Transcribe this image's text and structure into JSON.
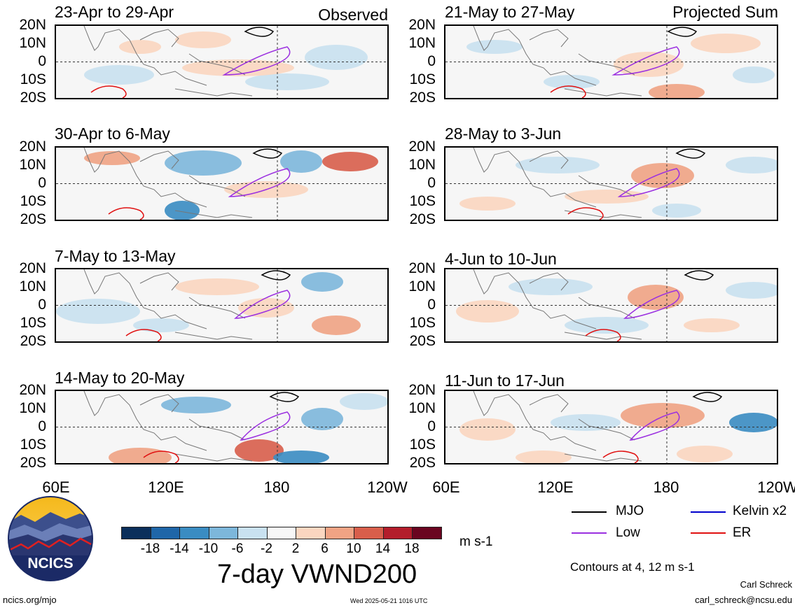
{
  "header": {
    "left_tag": "Observed",
    "right_tag": "Projected Sum"
  },
  "panels_left": [
    {
      "title": "23-Apr to 29-Apr"
    },
    {
      "title": "30-Apr to 6-May"
    },
    {
      "title": "7-May to 13-May"
    },
    {
      "title": "14-May to 20-May"
    }
  ],
  "panels_right": [
    {
      "title": "21-May to 27-May"
    },
    {
      "title": "28-May to 3-Jun"
    },
    {
      "title": "4-Jun to 10-Jun"
    },
    {
      "title": "11-Jun to 17-Jun"
    }
  ],
  "lat_labels": [
    "20N",
    "10N",
    "0",
    "10S",
    "20S"
  ],
  "lon_labels": [
    "60E",
    "120E",
    "180",
    "120W"
  ],
  "colorbar": {
    "labels": [
      "-18",
      "-14",
      "-10",
      "-6",
      "-2",
      "2",
      "6",
      "10",
      "14",
      "18"
    ],
    "colors": [
      "#0b2f5b",
      "#1f66a8",
      "#3a8cc2",
      "#7db7db",
      "#c9e1f0",
      "#f7f7f7",
      "#fbd6c0",
      "#f0a384",
      "#d85e4b",
      "#b31d2b",
      "#6a0520"
    ],
    "units": "m s-1"
  },
  "main_title": "7-day VWND200",
  "legend": {
    "items": [
      {
        "label": "MJO",
        "color": "#000000"
      },
      {
        "label": "Kelvin x2",
        "color": "#0000cc"
      },
      {
        "label": "Low",
        "color": "#9b30e0"
      },
      {
        "label": "ER",
        "color": "#e01010"
      }
    ],
    "contours_note": "Contours at 4, 12 m s-1"
  },
  "logo": {
    "text": "NCICS"
  },
  "footer": {
    "left": "ncics.org/mjo",
    "center": "Wed 2025-05-21 1016 UTC",
    "author": "Carl Schreck",
    "email": "carl_schreck@ncsu.edu"
  }
}
